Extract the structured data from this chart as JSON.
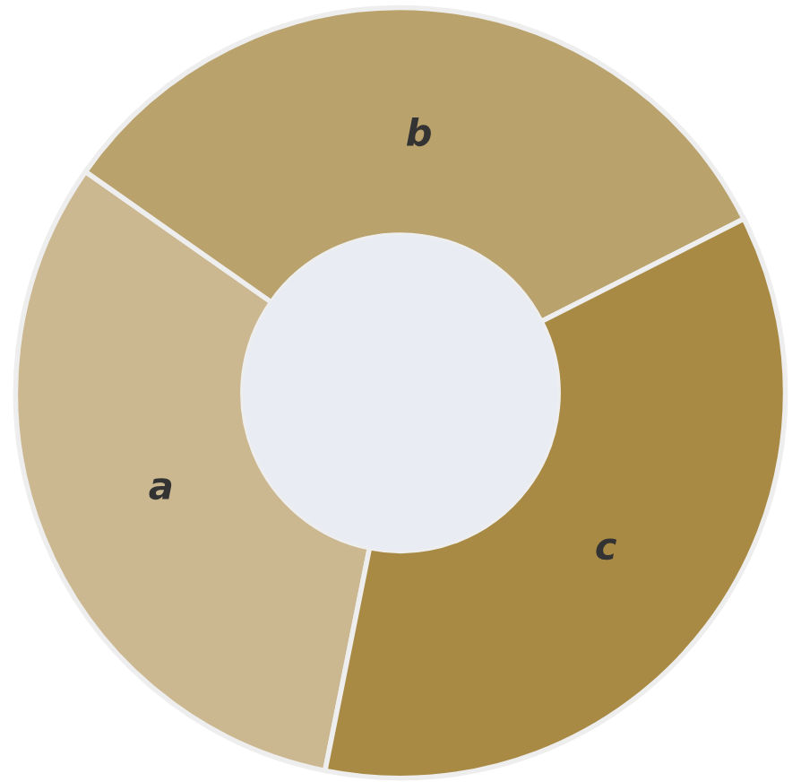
{
  "chart_data": {
    "type": "donut",
    "categories": [
      "a",
      "b",
      "c"
    ],
    "values": [
      31.6,
      32.8,
      35.6
    ],
    "colors": [
      "#cbb890",
      "#b9a26c",
      "#a88a45"
    ]
  }
}
